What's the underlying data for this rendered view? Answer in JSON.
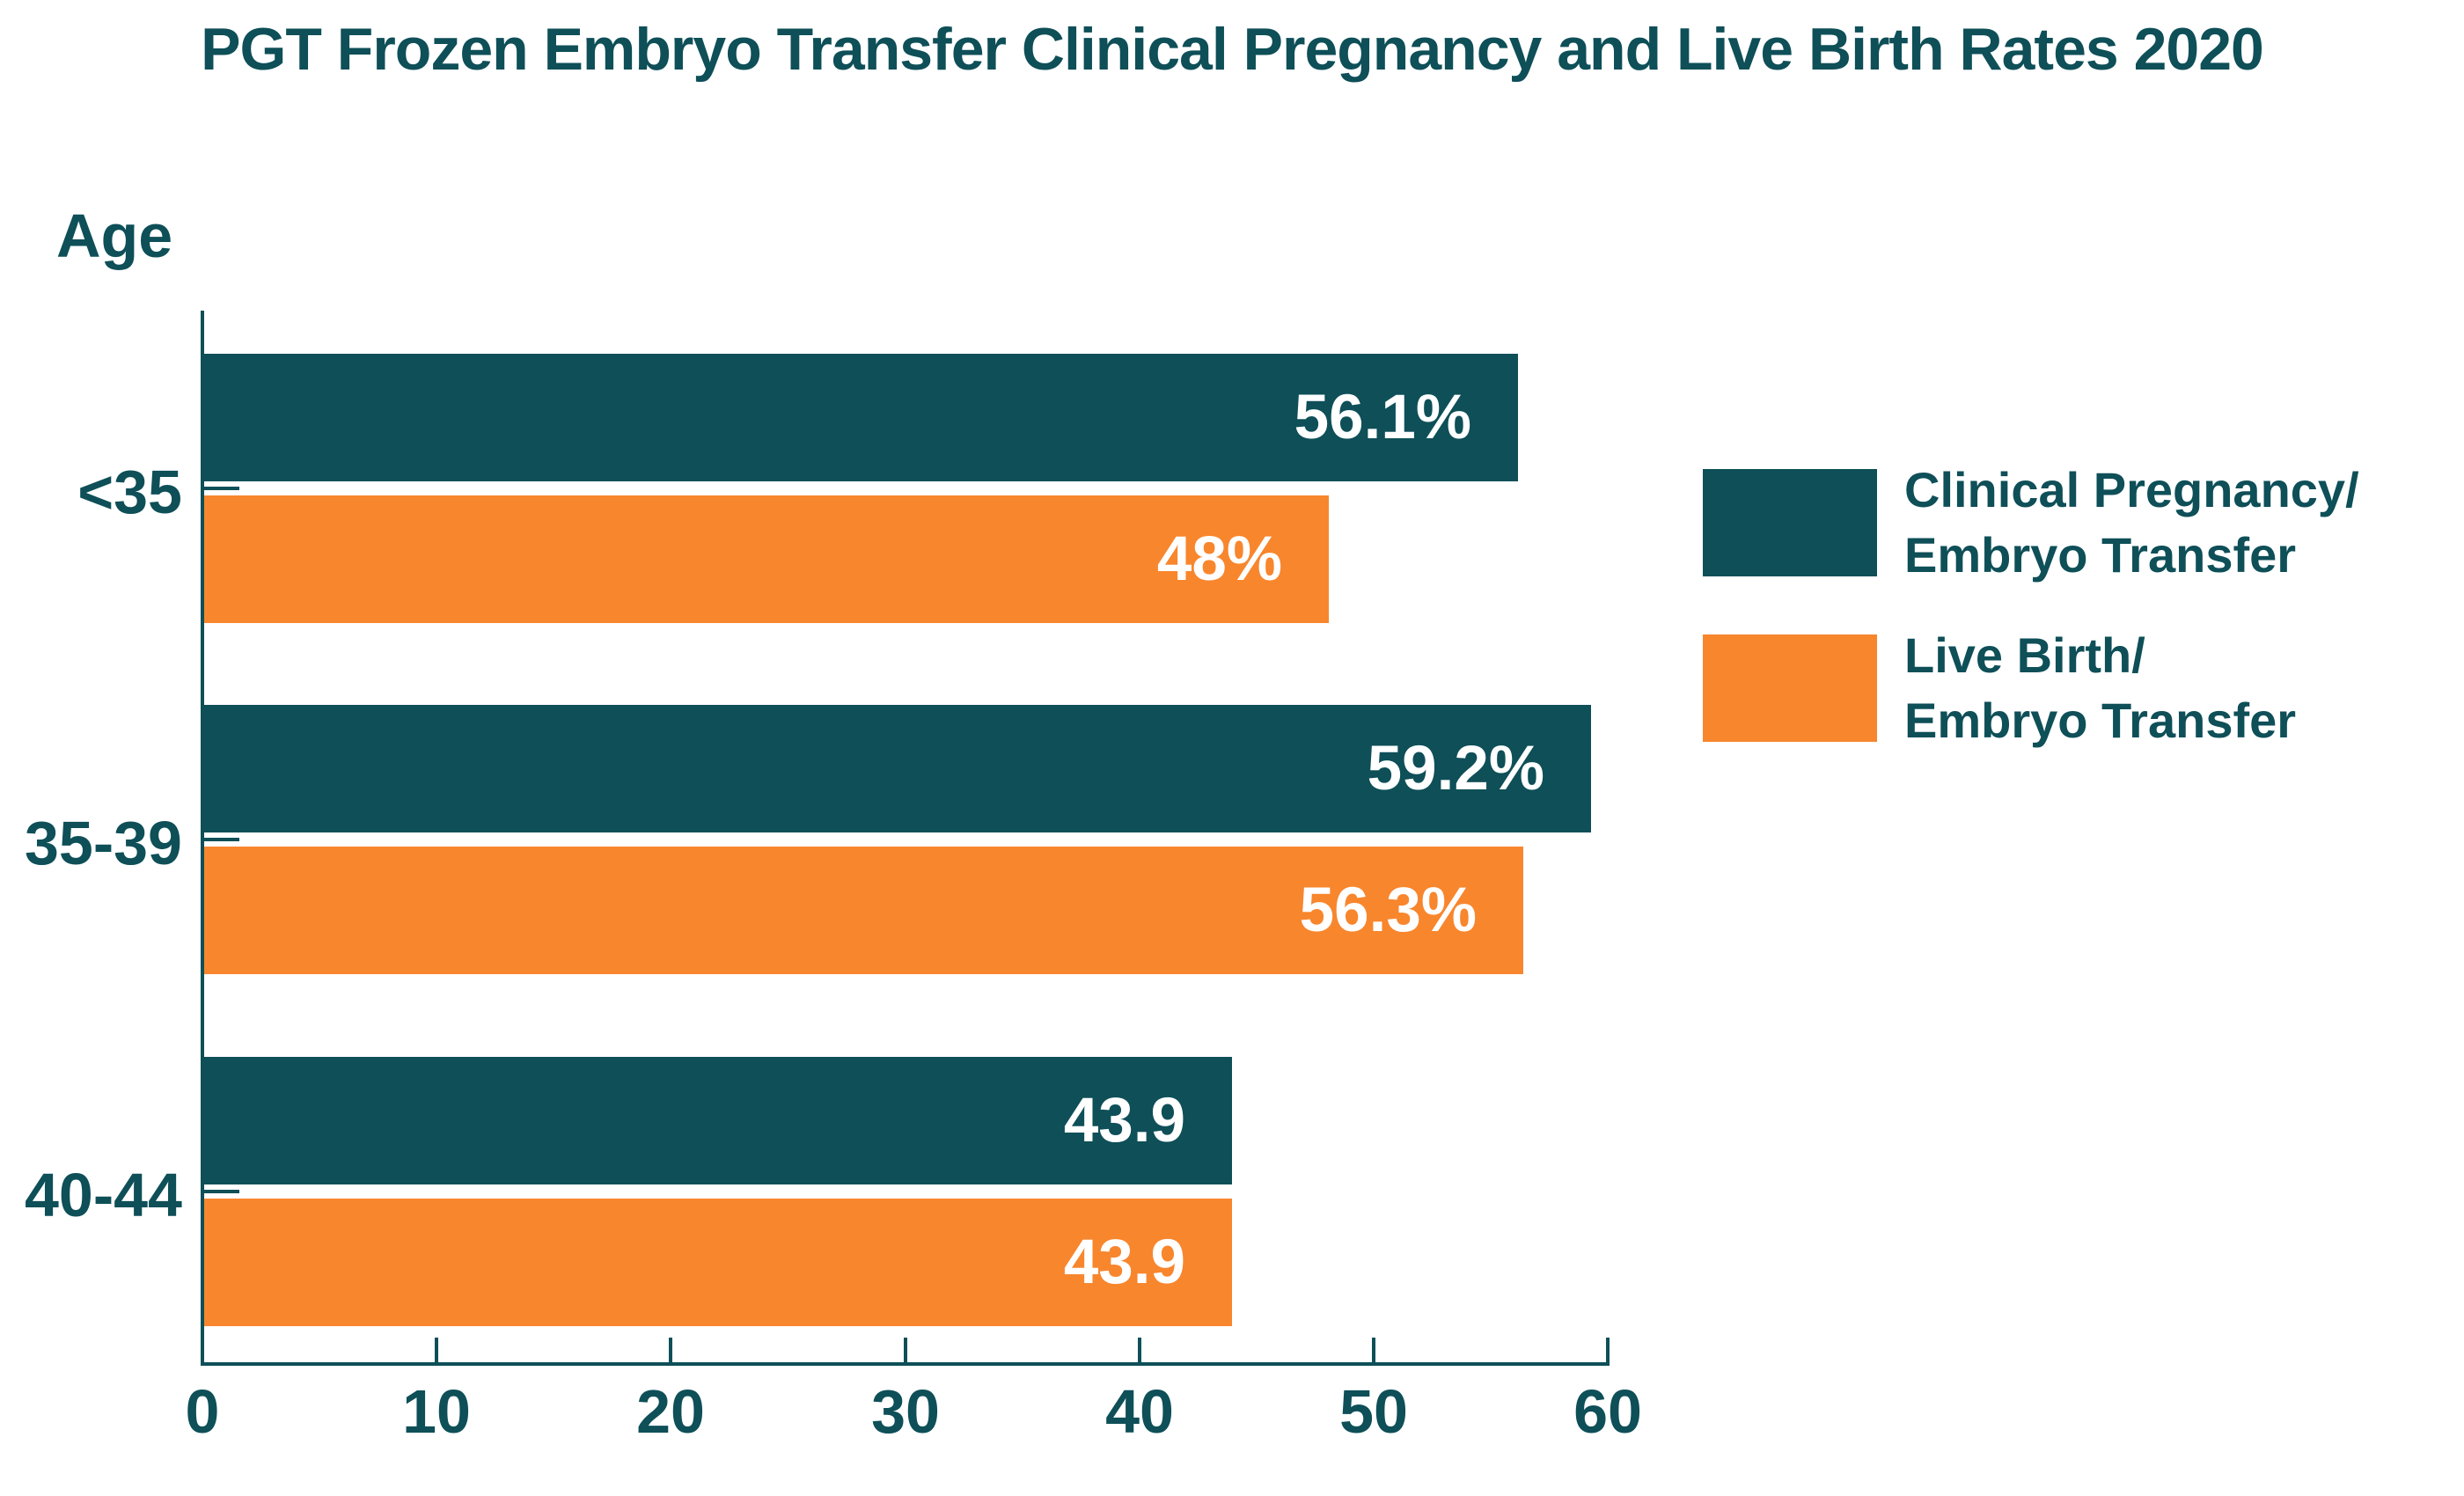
{
  "title": "PGT Frozen Embryo Transfer Clinical Pregnancy and Live Birth Rates 2020",
  "colors": {
    "teal": "#0E4F58",
    "orange": "#F8862D",
    "bar_label_text": "#FFFFFF",
    "axis_and_text": "#0E4F58",
    "background": "#FFFFFF"
  },
  "axis": {
    "y_title": "Age",
    "x_tick_labels": [
      "0",
      "10",
      "20",
      "30",
      "40",
      "50",
      "60"
    ]
  },
  "legend": {
    "items": [
      {
        "lines": [
          "Clinical Pregnancy/",
          "Embryo Transfer"
        ],
        "color": "#0E4F58"
      },
      {
        "lines": [
          "Live Birth/",
          "Embryo Transfer"
        ],
        "color": "#F8862D"
      }
    ]
  },
  "chart_data": {
    "type": "bar",
    "orientation": "horizontal",
    "title": "PGT Frozen Embryo Transfer Clinical Pregnancy and Live Birth Rates 2020",
    "ylabel": "Age",
    "xlabel": "",
    "xlim": [
      0,
      60
    ],
    "x_ticks": [
      0,
      10,
      20,
      30,
      40,
      50,
      60
    ],
    "grid": false,
    "legend_position": "right",
    "categories": [
      "<35",
      "35-39",
      "40-44"
    ],
    "series": [
      {
        "name": "Clinical Pregnancy/Embryo Transfer",
        "color": "#0E4F58",
        "values": [
          56.1,
          59.2,
          43.9
        ],
        "value_labels": [
          "56.1%",
          "59.2%",
          "43.9"
        ]
      },
      {
        "name": "Live Birth/Embryo Transfer",
        "color": "#F8862D",
        "values": [
          48,
          56.3,
          43.9
        ],
        "value_labels": [
          "48%",
          "56.3%",
          "43.9"
        ]
      }
    ]
  }
}
